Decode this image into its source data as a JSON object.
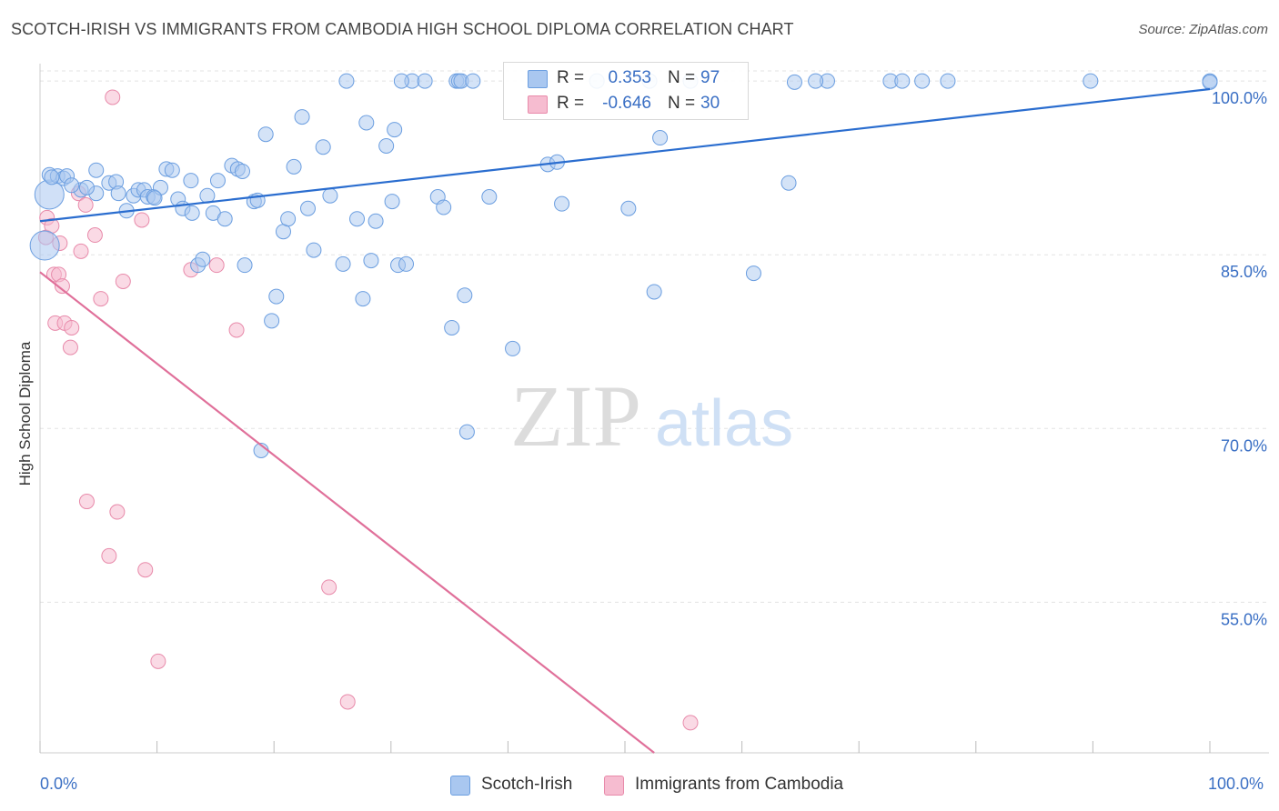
{
  "title": "SCOTCH-IRISH VS IMMIGRANTS FROM CAMBODIA HIGH SCHOOL DIPLOMA CORRELATION CHART",
  "source": "Source: ZipAtlas.com",
  "watermark": {
    "zip": "ZIP",
    "atlas": "atlas"
  },
  "legend": {
    "rows": [
      {
        "r_label": "R =",
        "r_value": "0.353",
        "n_label": "N =",
        "n_value": "97"
      },
      {
        "r_label": "R =",
        "r_value": "-0.646",
        "n_label": "N =",
        "n_value": "30"
      }
    ]
  },
  "colors": {
    "blue_fill": "#a9c7f0",
    "blue_stroke": "#6b9ee0",
    "blue_line": "#2a6dcf",
    "pink_fill": "#f6bcd0",
    "pink_stroke": "#e88aaa",
    "pink_line": "#e0709a",
    "tick_text": "#3a6fc4",
    "grid": "#e3e3e3"
  },
  "chart_data": {
    "type": "scatter",
    "title": "SCOTCH-IRISH VS IMMIGRANTS FROM CAMBODIA HIGH SCHOOL DIPLOMA CORRELATION CHART",
    "xlabel": "",
    "ylabel": "High School Diploma",
    "xlim": [
      0,
      100
    ],
    "ylim": [
      42,
      101.5
    ],
    "x_tick_labels": [
      "0.0%",
      "100.0%"
    ],
    "y_ticks": [
      55,
      70,
      85,
      100
    ],
    "y_tick_labels": [
      "55.0%",
      "70.0%",
      "85.0%",
      "100.0%"
    ],
    "grid": true,
    "legend_position": "bottom",
    "series": [
      {
        "name": "Scotch-Irish",
        "color": "#a9c7f0",
        "trend": {
          "x": [
            0,
            100
          ],
          "y": [
            87.9,
            99.3
          ]
        },
        "points": [
          [
            0.8,
            91.9
          ],
          [
            1.5,
            91.8
          ],
          [
            2.0,
            91.6
          ],
          [
            2.3,
            91.8
          ],
          [
            3.5,
            90.6
          ],
          [
            4.8,
            92.3
          ],
          [
            4.8,
            90.3
          ],
          [
            5.9,
            91.2
          ],
          [
            6.5,
            91.3
          ],
          [
            6.7,
            90.3
          ],
          [
            7.4,
            88.8
          ],
          [
            8.0,
            90.1
          ],
          [
            8.4,
            90.6
          ],
          [
            8.9,
            90.6
          ],
          [
            9.2,
            90.0
          ],
          [
            9.7,
            90.0
          ],
          [
            10.3,
            90.8
          ],
          [
            10.8,
            92.4
          ],
          [
            11.3,
            92.3
          ],
          [
            11.8,
            89.8
          ],
          [
            12.2,
            89.0
          ],
          [
            12.9,
            91.4
          ],
          [
            13.0,
            88.6
          ],
          [
            13.5,
            84.1
          ],
          [
            13.9,
            84.6
          ],
          [
            14.3,
            90.1
          ],
          [
            14.8,
            88.6
          ],
          [
            15.2,
            91.4
          ],
          [
            15.8,
            88.1
          ],
          [
            16.4,
            92.7
          ],
          [
            16.9,
            92.4
          ],
          [
            17.3,
            92.2
          ],
          [
            17.5,
            84.1
          ],
          [
            18.3,
            89.6
          ],
          [
            18.9,
            68.1
          ],
          [
            19.3,
            95.4
          ],
          [
            19.8,
            79.3
          ],
          [
            20.2,
            81.4
          ],
          [
            20.8,
            87.0
          ],
          [
            21.2,
            88.1
          ],
          [
            21.7,
            92.6
          ],
          [
            22.4,
            96.9
          ],
          [
            22.9,
            89.0
          ],
          [
            23.4,
            85.4
          ],
          [
            24.2,
            94.3
          ],
          [
            24.8,
            90.1
          ],
          [
            25.9,
            84.2
          ],
          [
            26.2,
            100.0
          ],
          [
            27.1,
            88.1
          ],
          [
            27.6,
            81.2
          ],
          [
            27.9,
            96.4
          ],
          [
            28.3,
            84.5
          ],
          [
            28.7,
            87.9
          ],
          [
            29.6,
            94.4
          ],
          [
            30.1,
            89.6
          ],
          [
            30.3,
            95.8
          ],
          [
            30.6,
            84.1
          ],
          [
            31.3,
            84.2
          ],
          [
            31.8,
            100.0
          ],
          [
            32.9,
            100.0
          ],
          [
            34.0,
            90.0
          ],
          [
            34.5,
            89.1
          ],
          [
            35.2,
            78.7
          ],
          [
            35.6,
            100.0
          ],
          [
            35.8,
            100.0
          ],
          [
            36.0,
            100.0
          ],
          [
            36.3,
            81.5
          ],
          [
            36.5,
            69.7
          ],
          [
            38.4,
            90.0
          ],
          [
            40.4,
            76.9
          ],
          [
            43.4,
            92.8
          ],
          [
            44.2,
            93.0
          ],
          [
            44.6,
            89.4
          ],
          [
            47.6,
            100.0
          ],
          [
            50.3,
            89.0
          ],
          [
            52.1,
            100.0
          ],
          [
            52.5,
            81.8
          ],
          [
            53.0,
            95.1
          ],
          [
            55.6,
            100.0
          ],
          [
            61.0,
            83.4
          ],
          [
            64.0,
            91.2
          ],
          [
            67.3,
            100.0
          ],
          [
            72.7,
            100.0
          ],
          [
            73.7,
            100.0
          ],
          [
            77.6,
            100.0
          ],
          [
            89.8,
            100.0
          ],
          [
            100.0,
            100.0
          ],
          [
            1.0,
            91.7
          ],
          [
            2.7,
            91.0
          ],
          [
            4.0,
            90.8
          ],
          [
            9.8,
            89.9
          ],
          [
            18.6,
            89.7
          ],
          [
            30.9,
            100.0
          ],
          [
            37.0,
            100.0
          ],
          [
            64.5,
            99.9
          ],
          [
            66.3,
            100.0
          ],
          [
            75.4,
            100.0
          ],
          [
            100.0,
            99.9
          ]
        ],
        "big_points": [
          [
            0.8,
            90.2
          ],
          [
            0.4,
            85.8
          ]
        ]
      },
      {
        "name": "Immigrants from Cambodia",
        "color": "#f6bcd0",
        "trend": {
          "x": [
            0.0,
            52.5
          ],
          "y": [
            83.5,
            42.0
          ]
        },
        "points": [
          [
            0.5,
            86.5
          ],
          [
            0.6,
            88.2
          ],
          [
            1.0,
            87.5
          ],
          [
            1.2,
            83.3
          ],
          [
            1.3,
            79.1
          ],
          [
            1.6,
            83.3
          ],
          [
            1.7,
            86.0
          ],
          [
            1.9,
            82.3
          ],
          [
            2.1,
            79.1
          ],
          [
            2.6,
            77.0
          ],
          [
            2.7,
            78.7
          ],
          [
            3.3,
            90.3
          ],
          [
            3.5,
            85.3
          ],
          [
            3.9,
            89.3
          ],
          [
            4.0,
            63.7
          ],
          [
            4.7,
            86.7
          ],
          [
            5.2,
            81.2
          ],
          [
            5.9,
            59.0
          ],
          [
            6.2,
            98.6
          ],
          [
            6.6,
            62.8
          ],
          [
            7.1,
            82.7
          ],
          [
            8.7,
            88.0
          ],
          [
            9.0,
            57.8
          ],
          [
            10.1,
            49.9
          ],
          [
            12.9,
            83.7
          ],
          [
            15.1,
            84.1
          ],
          [
            16.8,
            78.5
          ],
          [
            24.7,
            56.3
          ],
          [
            26.3,
            46.4
          ],
          [
            55.6,
            44.6
          ]
        ]
      }
    ]
  },
  "bottom_legend": {
    "item1": "Scotch-Irish",
    "item2": "Immigrants from Cambodia"
  }
}
